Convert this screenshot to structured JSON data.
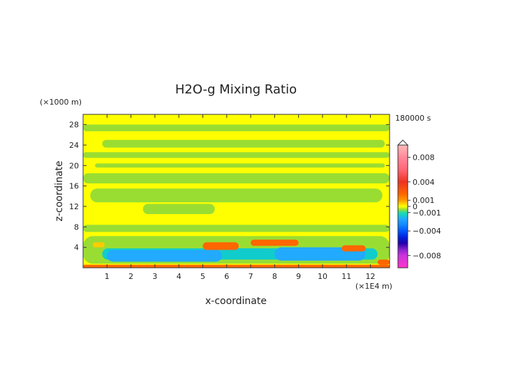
{
  "chart_data": {
    "type": "heatmap",
    "title": "H2O-g Mixing Ratio",
    "xlabel": "x-coordinate",
    "ylabel": "z-coordinate",
    "x_unit": "(×1E4 m)",
    "y_unit": "(×1000 m)",
    "time_label": "180000 s",
    "xlim": [
      0,
      12.8
    ],
    "ylim": [
      0,
      30
    ],
    "x_ticks": [
      "1",
      "2",
      "3",
      "4",
      "5",
      "6",
      "7",
      "8",
      "9",
      "10",
      "11",
      "12"
    ],
    "y_ticks": [
      "4",
      "8",
      "12",
      "16",
      "20",
      "24",
      "28"
    ],
    "colorbar": {
      "range": [
        -0.01,
        0.01
      ],
      "tick_labels": [
        {
          "v": 0.008,
          "t": "0.008"
        },
        {
          "v": 0.004,
          "t": "0.004"
        },
        {
          "v": 0.001,
          "t": "0.001"
        },
        {
          "v": 0,
          "t": "0"
        },
        {
          "v": -0.001,
          "t": "−0.001"
        },
        {
          "v": -0.004,
          "t": "−0.004"
        },
        {
          "v": -0.008,
          "t": "−0.008"
        }
      ],
      "stops": [
        {
          "v": -0.01,
          "c": "#ff33cc"
        },
        {
          "v": -0.008,
          "c": "#cc33dd"
        },
        {
          "v": -0.007,
          "c": "#8822cc"
        },
        {
          "v": -0.006,
          "c": "#2200aa"
        },
        {
          "v": -0.005,
          "c": "#0022dd"
        },
        {
          "v": -0.004,
          "c": "#0055ff"
        },
        {
          "v": -0.003,
          "c": "#1188ff"
        },
        {
          "v": -0.002,
          "c": "#22aaff"
        },
        {
          "v": -0.0015,
          "c": "#11cccc"
        },
        {
          "v": -0.001,
          "c": "#22ddaa"
        },
        {
          "v": -0.0005,
          "c": "#99dd33"
        },
        {
          "v": 0,
          "c": "#ffff00"
        },
        {
          "v": 0.0005,
          "c": "#ffcc00"
        },
        {
          "v": 0.001,
          "c": "#ff9900"
        },
        {
          "v": 0.002,
          "c": "#ff6600"
        },
        {
          "v": 0.004,
          "c": "#ee3322"
        },
        {
          "v": 0.006,
          "c": "#ff6677"
        },
        {
          "v": 0.008,
          "c": "#ff8899"
        },
        {
          "v": 0.01,
          "c": "#ffbbbb"
        }
      ]
    },
    "background_value": 0,
    "regions": [
      {
        "x": [
          0,
          12.8
        ],
        "y": [
          26.7,
          28.0
        ],
        "value": -0.0005
      },
      {
        "x": [
          0.8,
          12.6
        ],
        "y": [
          23.5,
          25.0
        ],
        "value": -0.0005
      },
      {
        "x": [
          0,
          12.8
        ],
        "y": [
          21.5,
          22.6
        ],
        "value": -0.0005
      },
      {
        "x": [
          0.5,
          12.6
        ],
        "y": [
          19.6,
          20.4
        ],
        "value": -0.0005
      },
      {
        "x": [
          0,
          12.8
        ],
        "y": [
          16.5,
          18.5
        ],
        "value": -0.0005
      },
      {
        "x": [
          0.3,
          12.5
        ],
        "y": [
          12.8,
          15.5
        ],
        "value": -0.0005
      },
      {
        "x": [
          2.5,
          5.5
        ],
        "y": [
          10.5,
          12.5
        ],
        "value": -0.0005
      },
      {
        "x": [
          0,
          12.8
        ],
        "y": [
          7.0,
          8.4
        ],
        "value": -0.0005
      },
      {
        "x": [
          0,
          12.8
        ],
        "y": [
          0.8,
          6.2
        ],
        "value": -0.0005
      },
      {
        "x": [
          0.8,
          12.3
        ],
        "y": [
          1.6,
          3.8
        ],
        "value": -0.0015
      },
      {
        "x": [
          1.0,
          5.8
        ],
        "y": [
          1.2,
          3.5
        ],
        "value": -0.002
      },
      {
        "x": [
          8.0,
          11.8
        ],
        "y": [
          1.4,
          4.0
        ],
        "value": -0.002
      },
      {
        "x": [
          6.2,
          7.8
        ],
        "y": [
          2.4,
          3.8
        ],
        "value": -0.0015
      },
      {
        "x": [
          5.0,
          6.5
        ],
        "y": [
          3.5,
          5.0
        ],
        "value": 0.002
      },
      {
        "x": [
          7.0,
          9.0
        ],
        "y": [
          4.3,
          5.5
        ],
        "value": 0.002
      },
      {
        "x": [
          10.8,
          11.8
        ],
        "y": [
          3.2,
          4.4
        ],
        "value": 0.002
      },
      {
        "x": [
          0.4,
          0.9
        ],
        "y": [
          4.0,
          5.0
        ],
        "value": 0.0005
      },
      {
        "x": [
          0,
          12.8
        ],
        "y": [
          0,
          0.6
        ],
        "value": 0.002
      },
      {
        "x": [
          12.3,
          12.8
        ],
        "y": [
          0.6,
          1.6
        ],
        "value": 0.002
      }
    ]
  }
}
